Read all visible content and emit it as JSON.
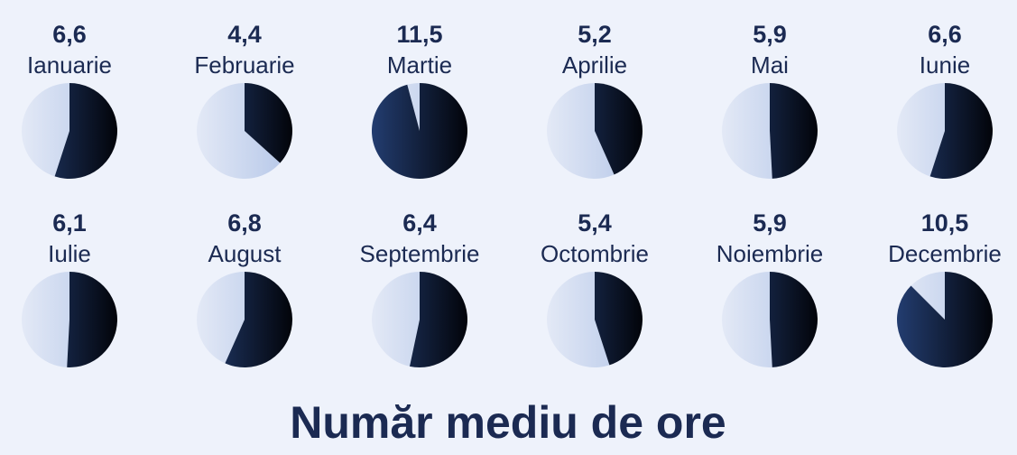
{
  "chart_data": {
    "type": "pie",
    "title": "Număr mediu de ore",
    "categories": [
      "Ianuarie",
      "Februarie",
      "Martie",
      "Aprilie",
      "Mai",
      "Iunie",
      "Iulie",
      "August",
      "Septembrie",
      "Octombrie",
      "Noiembrie",
      "Decembrie"
    ],
    "values": [
      6.6,
      4.4,
      11.5,
      5.2,
      5.9,
      6.6,
      6.1,
      6.8,
      6.4,
      5.4,
      5.9,
      10.5
    ],
    "value_labels": [
      "6,6",
      "4,4",
      "11,5",
      "5,2",
      "5,9",
      "6,6",
      "6,1",
      "6,8",
      "6,4",
      "5,4",
      "5,9",
      "10,5"
    ],
    "ylim": [
      0,
      12
    ],
    "colors": [
      "#233d70",
      "#02040a",
      "#e3e9f6",
      "#b4c6e8"
    ]
  }
}
